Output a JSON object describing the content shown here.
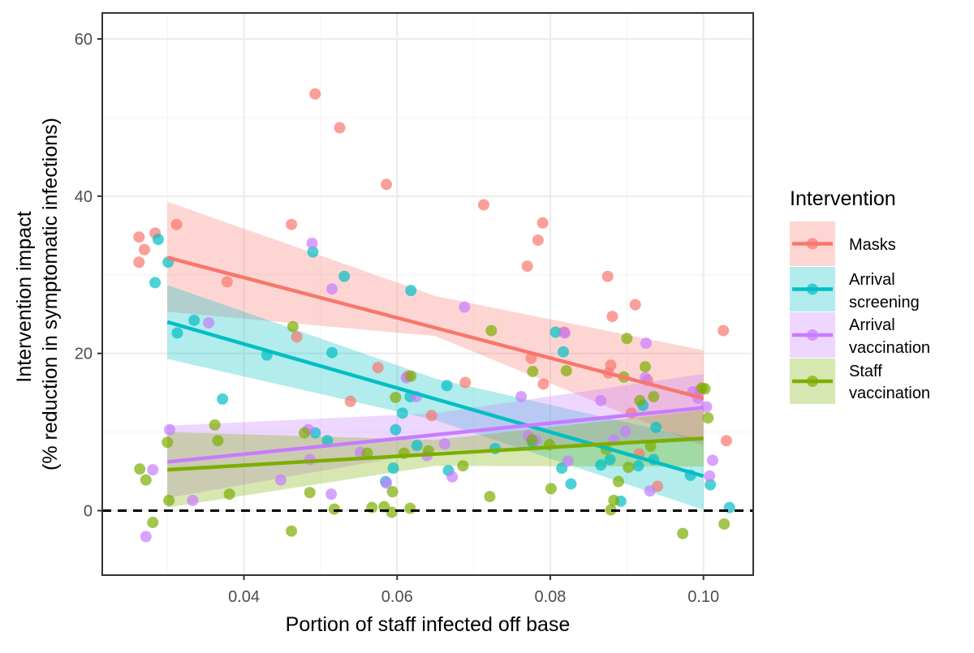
{
  "chart_data": {
    "type": "scatter",
    "title": "",
    "xlabel": "Portion of staff infected off base",
    "ylabel_lines": [
      "Intervention impact",
      "(% reduction in symptomatic infections)"
    ],
    "xlim": [
      0.0215,
      0.1065
    ],
    "ylim": [
      -8.2,
      63.3
    ],
    "x_ticks": [
      0.04,
      0.06,
      0.08,
      0.1
    ],
    "x_tick_labels": [
      "0.04",
      "0.06",
      "0.08",
      "0.10"
    ],
    "y_ticks": [
      0,
      20,
      40,
      60
    ],
    "y_tick_labels": [
      "0",
      "20",
      "40",
      "60"
    ],
    "grid": true,
    "reference_line": {
      "y": 0,
      "style": "dashed"
    },
    "legend": {
      "title": "Intervention",
      "position": "right"
    },
    "series": [
      {
        "name": "Masks",
        "label_lines": [
          "Masks"
        ],
        "color": "#F8766D",
        "fit": {
          "x": [
            0.03,
            0.1
          ],
          "y": [
            32.2,
            14.3
          ]
        },
        "band": {
          "x": [
            0.03,
            0.065,
            0.1
          ],
          "lower": [
            25.3,
            22.2,
            8.2
          ],
          "upper": [
            39.3,
            27.3,
            20.4
          ]
        },
        "points": [
          [
            0.0263,
            34.8
          ],
          [
            0.0263,
            31.6
          ],
          [
            0.027,
            33.2
          ],
          [
            0.0284,
            35.3
          ],
          [
            0.0312,
            36.4
          ],
          [
            0.0378,
            29.1
          ],
          [
            0.0462,
            36.4
          ],
          [
            0.0493,
            53.0
          ],
          [
            0.0525,
            48.7
          ],
          [
            0.0586,
            41.5
          ],
          [
            0.0575,
            18.2
          ],
          [
            0.0469,
            22.1
          ],
          [
            0.0539,
            13.9
          ],
          [
            0.0614,
            17.1
          ],
          [
            0.0645,
            12.1
          ],
          [
            0.0689,
            16.3
          ],
          [
            0.0713,
            38.9
          ],
          [
            0.077,
            31.1
          ],
          [
            0.0784,
            34.4
          ],
          [
            0.079,
            36.6
          ],
          [
            0.0791,
            16.1
          ],
          [
            0.0875,
            29.8
          ],
          [
            0.0876,
            17.5
          ],
          [
            0.0879,
            18.5
          ],
          [
            0.0881,
            24.7
          ],
          [
            0.0911,
            26.2
          ],
          [
            0.0906,
            12.4
          ],
          [
            0.0916,
            7.2
          ],
          [
            0.0927,
            16.6
          ],
          [
            0.094,
            3.1
          ],
          [
            0.0995,
            15.3
          ],
          [
            0.1026,
            22.9
          ],
          [
            0.103,
            8.9
          ],
          [
            0.0775,
            19.4
          ],
          [
            0.0818,
            22.7
          ]
        ]
      },
      {
        "name": "Arrival screening",
        "label_lines": [
          "Arrival",
          "screening"
        ],
        "color": "#00BFC4",
        "fit": {
          "x": [
            0.03,
            0.1
          ],
          "y": [
            24.0,
            4.4
          ]
        },
        "band": {
          "x": [
            0.03,
            0.065,
            0.1
          ],
          "lower": [
            19.3,
            11.5,
            0.1
          ],
          "upper": [
            28.7,
            16.8,
            9.0
          ]
        },
        "points": [
          [
            0.0288,
            34.5
          ],
          [
            0.0284,
            29.0
          ],
          [
            0.0301,
            31.6
          ],
          [
            0.0313,
            22.6
          ],
          [
            0.0335,
            24.2
          ],
          [
            0.0372,
            14.2
          ],
          [
            0.043,
            19.8
          ],
          [
            0.049,
            32.9
          ],
          [
            0.0493,
            9.9
          ],
          [
            0.0509,
            8.9
          ],
          [
            0.0515,
            20.1
          ],
          [
            0.0531,
            29.8
          ],
          [
            0.0598,
            10.3
          ],
          [
            0.0607,
            12.4
          ],
          [
            0.0618,
            28.0
          ],
          [
            0.0617,
            14.5
          ],
          [
            0.0626,
            8.3
          ],
          [
            0.0665,
            15.9
          ],
          [
            0.0667,
            5.1
          ],
          [
            0.0728,
            7.9
          ],
          [
            0.0777,
            8.7
          ],
          [
            0.0807,
            22.7
          ],
          [
            0.0815,
            5.4
          ],
          [
            0.0817,
            20.2
          ],
          [
            0.0827,
            3.4
          ],
          [
            0.0866,
            5.8
          ],
          [
            0.0878,
            6.5
          ],
          [
            0.0892,
            1.2
          ],
          [
            0.0915,
            5.7
          ],
          [
            0.0921,
            13.4
          ],
          [
            0.0935,
            6.5
          ],
          [
            0.0938,
            10.6
          ],
          [
            0.0983,
            4.5
          ],
          [
            0.1009,
            3.3
          ],
          [
            0.1034,
            0.4
          ],
          [
            0.0595,
            5.4
          ],
          [
            0.0585,
            3.7
          ]
        ]
      },
      {
        "name": "Arrival vaccination",
        "label_lines": [
          "Arrival",
          "vaccination"
        ],
        "color": "#C77CFF",
        "fit": {
          "x": [
            0.03,
            0.1
          ],
          "y": [
            6.2,
            13.1
          ]
        },
        "band": {
          "x": [
            0.03,
            0.065,
            0.1
          ],
          "lower": [
            1.6,
            7.6,
            8.8
          ],
          "upper": [
            10.8,
            12.4,
            17.4
          ]
        },
        "points": [
          [
            0.0272,
            -3.3
          ],
          [
            0.0281,
            5.2
          ],
          [
            0.0303,
            10.3
          ],
          [
            0.0333,
            1.3
          ],
          [
            0.0354,
            23.9
          ],
          [
            0.0448,
            3.9
          ],
          [
            0.0484,
            10.3
          ],
          [
            0.0489,
            34.0
          ],
          [
            0.0486,
            6.5
          ],
          [
            0.0514,
            2.1
          ],
          [
            0.0515,
            28.2
          ],
          [
            0.0552,
            7.4
          ],
          [
            0.0586,
            3.5
          ],
          [
            0.0612,
            16.9
          ],
          [
            0.0625,
            14.5
          ],
          [
            0.0639,
            7.0
          ],
          [
            0.0662,
            8.5
          ],
          [
            0.0672,
            4.3
          ],
          [
            0.0688,
            25.9
          ],
          [
            0.0762,
            14.5
          ],
          [
            0.0771,
            9.5
          ],
          [
            0.0781,
            9.0
          ],
          [
            0.0819,
            22.6
          ],
          [
            0.0823,
            6.3
          ],
          [
            0.0866,
            14.0
          ],
          [
            0.0883,
            9.0
          ],
          [
            0.0898,
            10.1
          ],
          [
            0.0925,
            21.3
          ],
          [
            0.0924,
            16.9
          ],
          [
            0.093,
            2.5
          ],
          [
            0.0986,
            15.1
          ],
          [
            0.0993,
            14.3
          ],
          [
            0.1008,
            4.4
          ],
          [
            0.1012,
            6.4
          ],
          [
            0.1004,
            13.2
          ]
        ]
      },
      {
        "name": "Staff vaccination",
        "label_lines": [
          "Staff",
          "vaccination"
        ],
        "color": "#7CAE00",
        "fit": {
          "x": [
            0.03,
            0.1
          ],
          "y": [
            5.2,
            9.2
          ]
        },
        "band": {
          "x": [
            0.03,
            0.065,
            0.1
          ],
          "lower": [
            0.4,
            5.7,
            5.6
          ],
          "upper": [
            10.0,
            9.0,
            12.8
          ]
        },
        "points": [
          [
            0.0264,
            5.3
          ],
          [
            0.0272,
            3.9
          ],
          [
            0.0281,
            -1.5
          ],
          [
            0.03,
            8.7
          ],
          [
            0.0302,
            1.3
          ],
          [
            0.0362,
            10.9
          ],
          [
            0.0366,
            8.9
          ],
          [
            0.0381,
            2.1
          ],
          [
            0.0462,
            -2.6
          ],
          [
            0.0464,
            23.4
          ],
          [
            0.0479,
            9.9
          ],
          [
            0.0486,
            2.3
          ],
          [
            0.0518,
            0.2
          ],
          [
            0.0561,
            7.3
          ],
          [
            0.0567,
            0.4
          ],
          [
            0.0583,
            0.5
          ],
          [
            0.0593,
            -0.2
          ],
          [
            0.0594,
            2.4
          ],
          [
            0.0598,
            14.4
          ],
          [
            0.0609,
            7.3
          ],
          [
            0.0617,
            0.3
          ],
          [
            0.0618,
            17.1
          ],
          [
            0.0641,
            7.6
          ],
          [
            0.0686,
            5.7
          ],
          [
            0.0721,
            1.8
          ],
          [
            0.0723,
            22.9
          ],
          [
            0.0776,
            9.0
          ],
          [
            0.0777,
            17.7
          ],
          [
            0.0799,
            8.4
          ],
          [
            0.0801,
            2.8
          ],
          [
            0.0821,
            17.8
          ],
          [
            0.0873,
            7.8
          ],
          [
            0.0879,
            0.1
          ],
          [
            0.0883,
            1.3
          ],
          [
            0.0889,
            3.7
          ],
          [
            0.09,
            21.9
          ],
          [
            0.0896,
            17.0
          ],
          [
            0.0902,
            5.5
          ],
          [
            0.0924,
            18.3
          ],
          [
            0.0931,
            8.2
          ],
          [
            0.0973,
            -2.9
          ],
          [
            0.0998,
            15.6
          ],
          [
            0.1002,
            15.5
          ],
          [
            0.1006,
            11.8
          ],
          [
            0.1027,
            -1.7
          ],
          [
            0.0917,
            14.0
          ],
          [
            0.0935,
            14.5
          ]
        ]
      }
    ]
  }
}
